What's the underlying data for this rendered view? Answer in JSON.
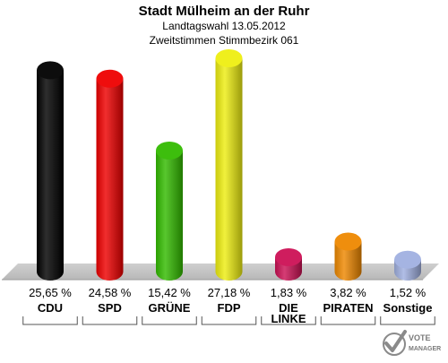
{
  "chart_data": {
    "type": "bar",
    "title": "Stadt Mülheim an der Ruhr",
    "subtitle_1": "Landtagswahl 13.05.2012",
    "subtitle_2": "Zweitstimmen Stimmbezirk 061",
    "categories": [
      "CDU",
      "SPD",
      "GRÜNE",
      "FDP",
      "DIE LINKE",
      "PIRATEN",
      "Sonstige"
    ],
    "category_lines": [
      [
        "CDU"
      ],
      [
        "SPD"
      ],
      [
        "GRÜNE"
      ],
      [
        "FDP"
      ],
      [
        "DIE",
        "LINKE"
      ],
      [
        "PIRATEN"
      ],
      [
        "Sonstige"
      ]
    ],
    "values": [
      25.65,
      24.58,
      15.42,
      27.18,
      1.83,
      3.82,
      1.52
    ],
    "value_labels": [
      "25,65 %",
      "24,58 %",
      "15,42 %",
      "27,18 %",
      "1,83 %",
      "3,82 %",
      "1,52 %"
    ],
    "colors": [
      "#000000",
      "#ee0000",
      "#33bb00",
      "#eeee11",
      "#cc1155",
      "#ee8800",
      "#a0b0e0"
    ],
    "ylim": [
      0,
      27.18
    ],
    "grid": false
  },
  "logo": {
    "line1": "VOTE",
    "line2": "MANAGER"
  }
}
